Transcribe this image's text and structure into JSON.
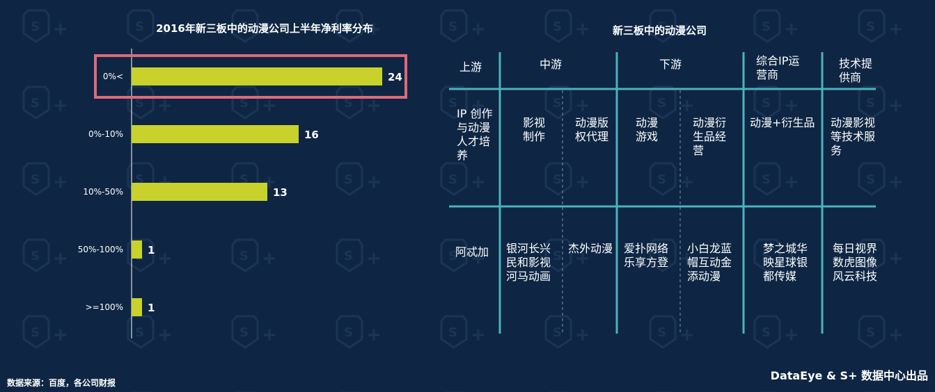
{
  "chart_data": {
    "type": "bar",
    "orientation": "horizontal",
    "title": "2016年新三板中的动漫公司上半年净利率分布",
    "categories": [
      "0%<",
      "0%-10%",
      "10%-50%",
      "50%-100%",
      ">=100%"
    ],
    "values": [
      24,
      16,
      13,
      1,
      1
    ],
    "highlighted_category": "0%<",
    "xlim": [
      0,
      26
    ],
    "grid": false,
    "colors": {
      "bar": "#c8d22a",
      "highlight": "#e0697b"
    }
  },
  "table": {
    "title": "新三板中的动漫公司",
    "headers": {
      "upstream": "上游",
      "midstream": "中游",
      "downstream": "下游",
      "ip_ops": "综合IP运营商",
      "tech": "技术提供商"
    },
    "categories": {
      "upstream": "IP 创作与动漫人才培养",
      "film": "影视制作",
      "copyright": "动漫版权代理",
      "games": "动漫游戏",
      "merch": "动漫衍生品经营",
      "ip_merch": "动漫+衍生品",
      "tech_service": "动漫影视等技术服务"
    },
    "companies": {
      "upstream": "阿忒加",
      "film": "银河长兴民和影视河马动画",
      "copyright": "杰外动漫",
      "games": "爱扑网络乐享方登",
      "merch": "小白龙蓝帽互动金添动漫",
      "ip_ops": "梦之城华映星球银都传媒",
      "tech": "每日视界数虎图像风云科技"
    }
  },
  "footer": {
    "source": "数据来源：百度，各公司财报",
    "credit": "DataEye & S+ 数据中心出品"
  }
}
